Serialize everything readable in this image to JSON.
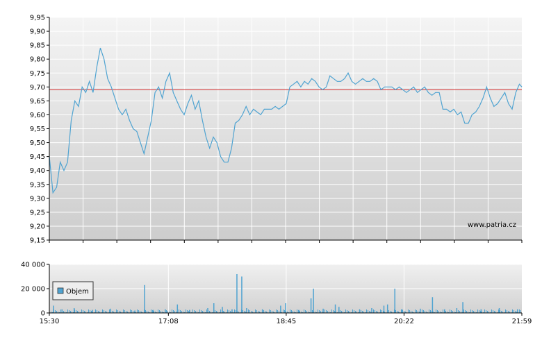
{
  "watermark": "www.patria.cz",
  "colors": {
    "price_line": "#4fa3d1",
    "reference_line": "#d42a2a",
    "volume_bar": "#4fa3d1"
  },
  "chart_data": [
    {
      "type": "line",
      "name": "price",
      "ylim": [
        9.15,
        9.95
      ],
      "y_ticks": [
        "9,95",
        "9,90",
        "9,85",
        "9,80",
        "9,75",
        "9,70",
        "9,65",
        "9,60",
        "9,55",
        "9,50",
        "9,45",
        "9,40",
        "9,35",
        "9,30",
        "9,25",
        "9,20",
        "9,15"
      ],
      "y_tick_values": [
        9.95,
        9.9,
        9.85,
        9.8,
        9.75,
        9.7,
        9.65,
        9.6,
        9.55,
        9.5,
        9.45,
        9.4,
        9.35,
        9.3,
        9.25,
        9.2,
        9.15
      ],
      "reference_value": 9.69,
      "grid": true,
      "x_range": [
        "15:30",
        "21:59"
      ],
      "series": [
        {
          "points": [
            [
              "15:30",
              9.45
            ],
            [
              "15:33",
              9.32
            ],
            [
              "15:36",
              9.34
            ],
            [
              "15:39",
              9.43
            ],
            [
              "15:42",
              9.4
            ],
            [
              "15:45",
              9.43
            ],
            [
              "15:48",
              9.58
            ],
            [
              "15:51",
              9.65
            ],
            [
              "15:54",
              9.63
            ],
            [
              "15:57",
              9.7
            ],
            [
              "16:00",
              9.68
            ],
            [
              "16:03",
              9.72
            ],
            [
              "16:06",
              9.68
            ],
            [
              "16:09",
              9.77
            ],
            [
              "16:12",
              9.84
            ],
            [
              "16:15",
              9.8
            ],
            [
              "16:18",
              9.73
            ],
            [
              "16:21",
              9.7
            ],
            [
              "16:24",
              9.66
            ],
            [
              "16:27",
              9.62
            ],
            [
              "16:30",
              9.6
            ],
            [
              "16:33",
              9.62
            ],
            [
              "16:36",
              9.58
            ],
            [
              "16:39",
              9.55
            ],
            [
              "16:42",
              9.54
            ],
            [
              "16:45",
              9.5
            ],
            [
              "16:48",
              9.46
            ],
            [
              "16:51",
              9.52
            ],
            [
              "16:54",
              9.58
            ],
            [
              "16:57",
              9.68
            ],
            [
              "17:00",
              9.7
            ],
            [
              "17:03",
              9.66
            ],
            [
              "17:06",
              9.72
            ],
            [
              "17:09",
              9.75
            ],
            [
              "17:12",
              9.68
            ],
            [
              "17:15",
              9.65
            ],
            [
              "17:18",
              9.62
            ],
            [
              "17:21",
              9.6
            ],
            [
              "17:24",
              9.64
            ],
            [
              "17:27",
              9.67
            ],
            [
              "17:30",
              9.62
            ],
            [
              "17:33",
              9.65
            ],
            [
              "17:36",
              9.58
            ],
            [
              "17:39",
              9.52
            ],
            [
              "17:42",
              9.48
            ],
            [
              "17:45",
              9.52
            ],
            [
              "17:48",
              9.5
            ],
            [
              "17:51",
              9.45
            ],
            [
              "17:54",
              9.43
            ],
            [
              "17:57",
              9.43
            ],
            [
              "18:00",
              9.48
            ],
            [
              "18:03",
              9.57
            ],
            [
              "18:06",
              9.58
            ],
            [
              "18:09",
              9.6
            ],
            [
              "18:12",
              9.63
            ],
            [
              "18:15",
              9.6
            ],
            [
              "18:18",
              9.62
            ],
            [
              "18:21",
              9.61
            ],
            [
              "18:24",
              9.6
            ],
            [
              "18:27",
              9.62
            ],
            [
              "18:30",
              9.62
            ],
            [
              "18:33",
              9.62
            ],
            [
              "18:36",
              9.63
            ],
            [
              "18:39",
              9.62
            ],
            [
              "18:42",
              9.63
            ],
            [
              "18:45",
              9.64
            ],
            [
              "18:48",
              9.7
            ],
            [
              "18:51",
              9.71
            ],
            [
              "18:54",
              9.72
            ],
            [
              "18:57",
              9.7
            ],
            [
              "19:00",
              9.72
            ],
            [
              "19:03",
              9.71
            ],
            [
              "19:06",
              9.73
            ],
            [
              "19:09",
              9.72
            ],
            [
              "19:12",
              9.7
            ],
            [
              "19:15",
              9.69
            ],
            [
              "19:18",
              9.7
            ],
            [
              "19:21",
              9.74
            ],
            [
              "19:24",
              9.73
            ],
            [
              "19:27",
              9.72
            ],
            [
              "19:30",
              9.72
            ],
            [
              "19:33",
              9.73
            ],
            [
              "19:36",
              9.75
            ],
            [
              "19:39",
              9.72
            ],
            [
              "19:42",
              9.71
            ],
            [
              "19:45",
              9.72
            ],
            [
              "19:48",
              9.73
            ],
            [
              "19:51",
              9.72
            ],
            [
              "19:54",
              9.72
            ],
            [
              "19:57",
              9.73
            ],
            [
              "20:00",
              9.72
            ],
            [
              "20:03",
              9.69
            ],
            [
              "20:06",
              9.7
            ],
            [
              "20:09",
              9.7
            ],
            [
              "20:12",
              9.7
            ],
            [
              "20:15",
              9.69
            ],
            [
              "20:18",
              9.7
            ],
            [
              "20:21",
              9.69
            ],
            [
              "20:24",
              9.68
            ],
            [
              "20:27",
              9.69
            ],
            [
              "20:30",
              9.7
            ],
            [
              "20:33",
              9.68
            ],
            [
              "20:36",
              9.69
            ],
            [
              "20:39",
              9.7
            ],
            [
              "20:42",
              9.68
            ],
            [
              "20:45",
              9.67
            ],
            [
              "20:48",
              9.68
            ],
            [
              "20:51",
              9.68
            ],
            [
              "20:54",
              9.62
            ],
            [
              "20:57",
              9.62
            ],
            [
              "21:00",
              9.61
            ],
            [
              "21:03",
              9.62
            ],
            [
              "21:06",
              9.6
            ],
            [
              "21:09",
              9.61
            ],
            [
              "21:12",
              9.57
            ],
            [
              "21:15",
              9.57
            ],
            [
              "21:18",
              9.6
            ],
            [
              "21:21",
              9.61
            ],
            [
              "21:24",
              9.63
            ],
            [
              "21:27",
              9.66
            ],
            [
              "21:30",
              9.7
            ],
            [
              "21:33",
              9.66
            ],
            [
              "21:36",
              9.63
            ],
            [
              "21:39",
              9.64
            ],
            [
              "21:42",
              9.66
            ],
            [
              "21:45",
              9.68
            ],
            [
              "21:48",
              9.64
            ],
            [
              "21:51",
              9.62
            ],
            [
              "21:54",
              9.68
            ],
            [
              "21:57",
              9.71
            ],
            [
              "21:59",
              9.7
            ]
          ]
        }
      ]
    },
    {
      "type": "bar",
      "name": "volume",
      "ylim": [
        0,
        40000
      ],
      "y_ticks": [
        "40 000",
        "20 000",
        "0"
      ],
      "y_tick_values": [
        40000,
        20000,
        0
      ],
      "x_ticks": [
        "15:30",
        "17:08",
        "18:45",
        "20:22",
        "21:59"
      ],
      "grid": true,
      "legend": {
        "label": "Objem",
        "placement": "left"
      },
      "series": [
        {
          "name": "Objem",
          "points": [
            [
              "15:33",
              6000
            ],
            [
              "15:40",
              3000
            ],
            [
              "15:50",
              4000
            ],
            [
              "16:05",
              2500
            ],
            [
              "16:20",
              3500
            ],
            [
              "16:40",
              2000
            ],
            [
              "16:48",
              23000
            ],
            [
              "16:55",
              2500
            ],
            [
              "17:05",
              3000
            ],
            [
              "17:15",
              7000
            ],
            [
              "17:25",
              2500
            ],
            [
              "17:40",
              4000
            ],
            [
              "17:45",
              8000
            ],
            [
              "17:52",
              5000
            ],
            [
              "18:00",
              3000
            ],
            [
              "18:04",
              32000
            ],
            [
              "18:08",
              30000
            ],
            [
              "18:12",
              4000
            ],
            [
              "18:25",
              3000
            ],
            [
              "18:40",
              6000
            ],
            [
              "18:44",
              8000
            ],
            [
              "18:55",
              2500
            ],
            [
              "19:05",
              12000
            ],
            [
              "19:07",
              20000
            ],
            [
              "19:15",
              3500
            ],
            [
              "19:25",
              7000
            ],
            [
              "19:28",
              5000
            ],
            [
              "19:45",
              3000
            ],
            [
              "19:55",
              4000
            ],
            [
              "20:05",
              6000
            ],
            [
              "20:08",
              7000
            ],
            [
              "20:14",
              20000
            ],
            [
              "20:20",
              3000
            ],
            [
              "20:35",
              3500
            ],
            [
              "20:45",
              13000
            ],
            [
              "20:55",
              3000
            ],
            [
              "21:05",
              4000
            ],
            [
              "21:10",
              9000
            ],
            [
              "21:25",
              3000
            ],
            [
              "21:40",
              4000
            ],
            [
              "21:55",
              3000
            ]
          ]
        }
      ]
    }
  ]
}
